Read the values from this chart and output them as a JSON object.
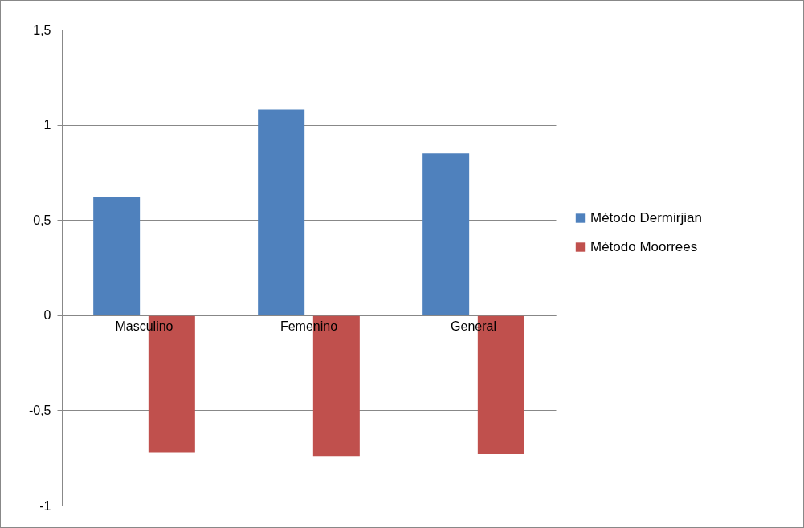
{
  "chart_data": {
    "type": "bar",
    "categories": [
      "Masculino",
      "Femenino",
      "General"
    ],
    "series": [
      {
        "name": "Método Dermirjian",
        "color": "#4f81bd",
        "values": [
          0.62,
          1.08,
          0.85
        ]
      },
      {
        "name": "Método Moorrees",
        "color": "#c0504d",
        "values": [
          -0.72,
          -0.74,
          -0.73
        ]
      }
    ],
    "ylim": [
      -1,
      1.5
    ],
    "yticks": [
      {
        "value": -1,
        "label": "-1"
      },
      {
        "value": -0.5,
        "label": "-0,5"
      },
      0,
      {
        "value": 0.5,
        "label": "0,5"
      },
      1,
      {
        "value": 1.5,
        "label": "1,5"
      }
    ],
    "grid": "y",
    "legend": "right"
  }
}
